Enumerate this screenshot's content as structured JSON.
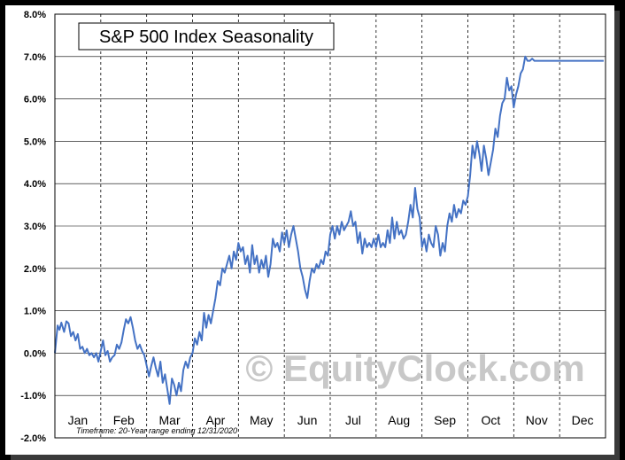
{
  "chart_data": {
    "type": "line",
    "title": "S&P 500 Index Seasonality",
    "footnote": "Timeframe: 20-Year range ending 12/31/2020",
    "watermark": "© EquityClock.com",
    "xlabel": "",
    "ylabel": "",
    "ylim": [
      -2.0,
      8.0
    ],
    "y_ticks": [
      "8.0%",
      "7.0%",
      "6.0%",
      "5.0%",
      "4.0%",
      "3.0%",
      "2.0%",
      "1.0%",
      "0.0%",
      "-1.0%",
      "-2.0%"
    ],
    "y_tick_values": [
      8,
      7,
      6,
      5,
      4,
      3,
      2,
      1,
      0,
      -1,
      -2
    ],
    "months": [
      "Jan",
      "Feb",
      "Mar",
      "Apr",
      "May",
      "Jun",
      "Jul",
      "Aug",
      "Sep",
      "Oct",
      "Nov",
      "Dec"
    ],
    "grid": true,
    "colors": {
      "line": "#4472C4",
      "grid": "#000000",
      "watermark": "#c8c8c8",
      "background": "#ffffff"
    },
    "series": [
      {
        "name": "S&P 500 Index Seasonality",
        "x": [
          0,
          0.06,
          0.1,
          0.14,
          0.2,
          0.25,
          0.3,
          0.35,
          0.4,
          0.45,
          0.5,
          0.55,
          0.6,
          0.65,
          0.7,
          0.75,
          0.8,
          0.85,
          0.9,
          0.95,
          1.0,
          1.05,
          1.1,
          1.15,
          1.2,
          1.25,
          1.3,
          1.35,
          1.4,
          1.45,
          1.5,
          1.55,
          1.6,
          1.65,
          1.7,
          1.75,
          1.8,
          1.85,
          1.9,
          1.95,
          2.0,
          2.05,
          2.1,
          2.15,
          2.2,
          2.25,
          2.3,
          2.35,
          2.4,
          2.45,
          2.5,
          2.55,
          2.6,
          2.65,
          2.7,
          2.75,
          2.8,
          2.85,
          2.9,
          2.95,
          3.0,
          3.05,
          3.1,
          3.15,
          3.2,
          3.25,
          3.3,
          3.35,
          3.4,
          3.45,
          3.5,
          3.55,
          3.6,
          3.65,
          3.7,
          3.75,
          3.8,
          3.85,
          3.9,
          3.95,
          4.0,
          4.05,
          4.1,
          4.15,
          4.2,
          4.25,
          4.3,
          4.35,
          4.4,
          4.45,
          4.5,
          4.55,
          4.6,
          4.65,
          4.7,
          4.75,
          4.8,
          4.85,
          4.9,
          4.95,
          5.0,
          5.05,
          5.1,
          5.15,
          5.2,
          5.25,
          5.3,
          5.35,
          5.4,
          5.45,
          5.5,
          5.55,
          5.6,
          5.65,
          5.7,
          5.75,
          5.8,
          5.85,
          5.9,
          5.95,
          6.0,
          6.05,
          6.1,
          6.15,
          6.2,
          6.25,
          6.3,
          6.35,
          6.4,
          6.45,
          6.5,
          6.55,
          6.6,
          6.65,
          6.7,
          6.75,
          6.8,
          6.85,
          6.9,
          6.95,
          7.0,
          7.05,
          7.1,
          7.15,
          7.2,
          7.25,
          7.3,
          7.35,
          7.4,
          7.45,
          7.5,
          7.55,
          7.6,
          7.65,
          7.7,
          7.75,
          7.8,
          7.85,
          7.9,
          7.95,
          8.0,
          8.05,
          8.1,
          8.15,
          8.2,
          8.25,
          8.3,
          8.35,
          8.4,
          8.45,
          8.5,
          8.55,
          8.6,
          8.65,
          8.7,
          8.75,
          8.8,
          8.85,
          8.9,
          8.95,
          9.0,
          9.05,
          9.1,
          9.15,
          9.2,
          9.25,
          9.3,
          9.35,
          9.4,
          9.45,
          9.5,
          9.55,
          9.6,
          9.65,
          9.7,
          9.75,
          9.8,
          9.85,
          9.9,
          9.95,
          10.0,
          10.05,
          10.1,
          10.15,
          10.2,
          10.25,
          10.3,
          10.35,
          10.4,
          10.45,
          10.5,
          10.55,
          10.6,
          10.65,
          10.7,
          10.75,
          10.8,
          10.85,
          10.9,
          10.95,
          11.0,
          11.05,
          11.1,
          11.15,
          11.2,
          11.25,
          11.3,
          11.35,
          11.4,
          11.45,
          11.5,
          11.55,
          11.6,
          11.65,
          11.7,
          11.75,
          11.8,
          11.85,
          11.9,
          11.96
        ],
        "values": [
          0.0,
          0.65,
          0.55,
          0.72,
          0.5,
          0.75,
          0.7,
          0.4,
          0.5,
          0.3,
          0.45,
          0.1,
          0.15,
          0.0,
          0.1,
          -0.05,
          0.0,
          -0.1,
          0.0,
          -0.2,
          0.05,
          0.3,
          -0.05,
          0.05,
          -0.2,
          -0.1,
          -0.05,
          0.2,
          0.1,
          0.25,
          0.55,
          0.8,
          0.7,
          0.85,
          0.6,
          0.3,
          0.1,
          0.2,
          0.05,
          -0.05,
          -0.3,
          -0.55,
          -0.3,
          -0.1,
          -0.35,
          -0.55,
          -0.2,
          -0.7,
          -0.5,
          -0.85,
          -1.2,
          -0.6,
          -0.75,
          -1.0,
          -0.7,
          -0.9,
          -0.4,
          -0.2,
          -0.35,
          -0.1,
          0.0,
          0.35,
          0.2,
          0.5,
          0.3,
          0.95,
          0.6,
          0.9,
          0.7,
          1.0,
          1.3,
          1.7,
          1.6,
          2.0,
          1.9,
          2.1,
          2.3,
          2.0,
          2.4,
          2.2,
          2.6,
          2.4,
          2.5,
          2.1,
          2.3,
          1.9,
          2.55,
          2.1,
          2.3,
          1.9,
          2.2,
          2.0,
          2.3,
          1.8,
          2.1,
          2.7,
          2.5,
          2.6,
          2.4,
          2.85,
          2.6,
          2.9,
          2.5,
          2.8,
          3.0,
          2.7,
          2.4,
          2.0,
          1.8,
          1.5,
          1.3,
          1.7,
          2.0,
          1.9,
          2.1,
          2.0,
          2.2,
          2.1,
          2.4,
          2.3,
          2.8,
          3.0,
          2.7,
          3.0,
          2.8,
          3.1,
          2.9,
          3.0,
          3.1,
          3.35,
          3.0,
          3.1,
          2.6,
          2.85,
          2.35,
          2.7,
          2.5,
          2.6,
          2.5,
          2.7,
          2.5,
          2.8,
          2.5,
          2.6,
          2.5,
          2.9,
          2.6,
          3.2,
          2.7,
          3.1,
          2.8,
          2.9,
          2.7,
          2.8,
          3.1,
          3.5,
          3.2,
          3.9,
          3.4,
          3.2,
          2.5,
          2.7,
          2.4,
          2.8,
          2.6,
          2.5,
          3.0,
          2.8,
          2.3,
          2.6,
          2.4,
          3.0,
          3.3,
          3.1,
          3.5,
          3.2,
          3.4,
          3.3,
          3.6,
          3.5,
          3.7,
          4.2,
          4.9,
          4.6,
          5.0,
          4.7,
          4.3,
          4.9,
          4.6,
          4.2,
          4.5,
          4.8,
          5.3,
          5.1,
          5.6,
          5.9,
          6.0,
          6.5,
          6.2,
          6.3,
          5.8,
          6.1,
          6.3,
          6.6,
          6.7,
          7.0,
          6.9,
          6.9,
          6.95,
          6.9,
          6.9,
          6.9,
          6.9,
          6.9,
          6.9,
          6.9,
          6.9,
          6.9,
          6.9,
          6.9,
          6.9,
          6.9,
          6.9,
          6.9,
          6.9,
          6.9,
          6.9,
          6.9,
          6.9,
          6.9,
          6.9,
          6.9,
          6.9,
          6.9,
          6.9,
          6.9,
          6.9,
          6.9,
          6.9,
          6.9
        ]
      }
    ]
  }
}
